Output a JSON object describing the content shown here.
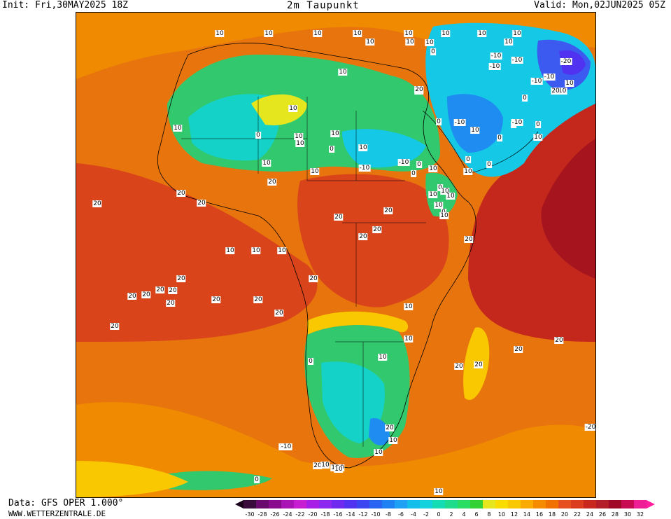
{
  "header": {
    "init": "Init: Fri,30MAY2025 18Z",
    "title": "2m Taupunkt",
    "valid": "Valid: Mon,02JUN2025 05Z"
  },
  "footer": {
    "data_source": "Data: GFS OPER 1.000°",
    "website": "WWW.WETTERZENTRALE.DE"
  },
  "legend": {
    "ticks": [
      "-30",
      "-28",
      "-26",
      "-24",
      "-22",
      "-20",
      "-18",
      "-16",
      "-14",
      "-12",
      "-10",
      "-8",
      "-6",
      "-4",
      "-2",
      "0",
      "2",
      "4",
      "6",
      "8",
      "10",
      "12",
      "14",
      "16",
      "18",
      "20",
      "22",
      "24",
      "26",
      "28",
      "30",
      "32"
    ],
    "colors": [
      "#3a0a3a",
      "#6a0a6e",
      "#8a0a8e",
      "#aa14b4",
      "#c81ed2",
      "#a81ee6",
      "#8c28f0",
      "#6e28f0",
      "#5032f0",
      "#3c46f0",
      "#2864f0",
      "#1e82f5",
      "#1ea0f5",
      "#14beeb",
      "#14d2dc",
      "#14dcb4",
      "#1edc8c",
      "#28dc64",
      "#32d232",
      "#e6e61e",
      "#fadc00",
      "#fac800",
      "#faaa00",
      "#f58c00",
      "#f07000",
      "#e6501e",
      "#dc3c1e",
      "#c8281e",
      "#b41e28",
      "#a00a28",
      "#c80a50",
      "#ee1e96"
    ]
  },
  "map": {
    "contour_labels": [
      "10",
      "10",
      "10",
      "10",
      "10",
      "10",
      "10",
      "10",
      "10",
      "10",
      "10",
      "10",
      "0",
      "10",
      "-10",
      "-10",
      "-10",
      "-10",
      "-20",
      "-10",
      "-10",
      "10",
      "20",
      "0",
      "20",
      "20",
      "-10",
      "0",
      "10",
      "10",
      "0",
      "10",
      "10",
      "0",
      "10",
      "0",
      "10",
      "10",
      "0",
      "10",
      "0",
      "10",
      "0",
      "10",
      "0",
      "-10",
      "-10",
      "0",
      "-10",
      "0",
      "0",
      "10",
      "10",
      "10",
      "10",
      "0",
      "10",
      "10",
      "10",
      "20",
      "20",
      "20",
      "20",
      "20",
      "20",
      "20",
      "20",
      "20",
      "20",
      "20",
      "20",
      "20",
      "20",
      "20",
      "20",
      "20",
      "20",
      "20",
      "20",
      "20",
      "20",
      "20",
      "20",
      "10",
      "10",
      "0",
      "10",
      "10",
      "20",
      "10",
      "20",
      "20",
      "10",
      "10",
      "-20",
      "-10",
      "0",
      "10",
      "10",
      "10",
      "10",
      "10",
      "10"
    ]
  }
}
